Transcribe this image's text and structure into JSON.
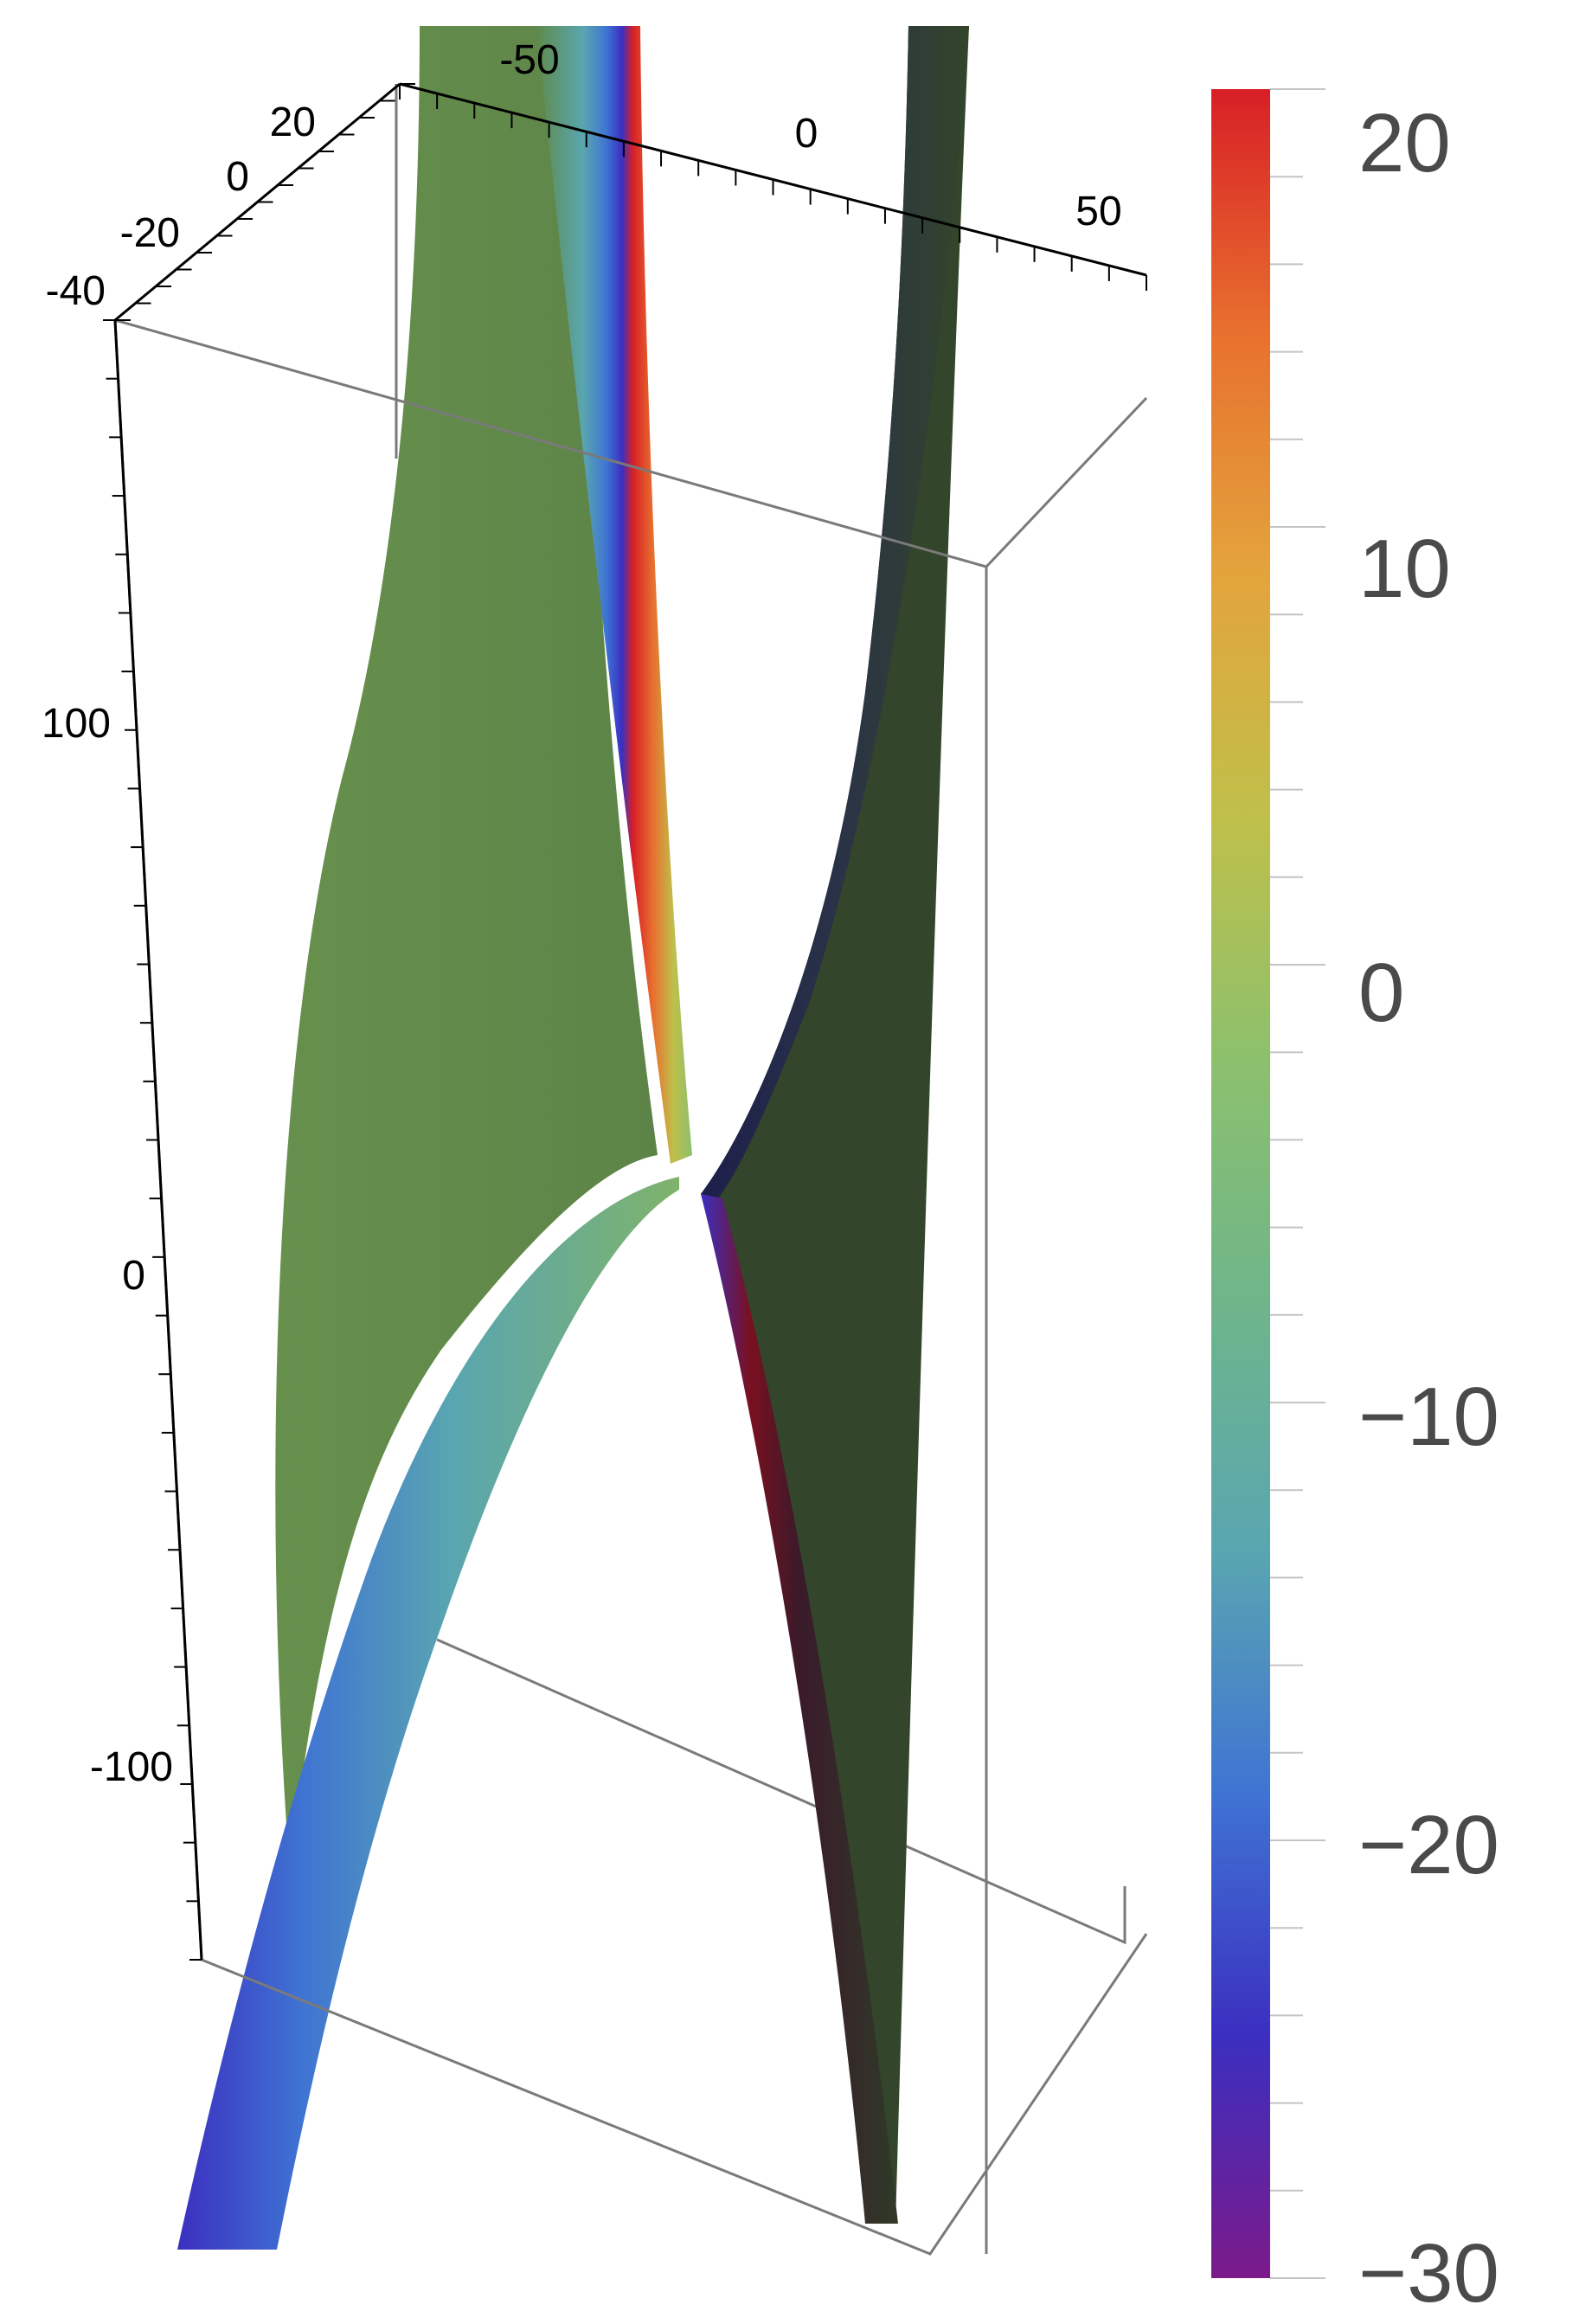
{
  "chart_data": {
    "type": "surface3d",
    "title": "",
    "axes": {
      "x": {
        "ticks": [
          "-50",
          "0",
          "50"
        ]
      },
      "y": {
        "ticks": [
          "20",
          "0",
          "-20",
          "-40"
        ]
      },
      "z": {
        "ticks": [
          "100",
          "0",
          "-100"
        ]
      }
    },
    "surfaces": [
      {
        "description": "left sheet",
        "dominant_color": "#62874a"
      },
      {
        "description": "right sheet",
        "dominant_color": "#33452a"
      }
    ],
    "colorbar": {
      "min": -30,
      "max": 20,
      "ticks": [
        {
          "value": 20,
          "label": "20"
        },
        {
          "value": 10,
          "label": "10"
        },
        {
          "value": 0,
          "label": "0"
        },
        {
          "value": -10,
          "label": "−10"
        },
        {
          "value": -20,
          "label": "−20"
        },
        {
          "value": -30,
          "label": "−30"
        }
      ],
      "palette": [
        "#7b1a8a",
        "#3b2fc0",
        "#3f74d3",
        "#5aa6b0",
        "#6eb58b",
        "#8cc06d",
        "#bfc04a",
        "#e3a43c",
        "#e8702e",
        "#d81f26"
      ]
    }
  }
}
